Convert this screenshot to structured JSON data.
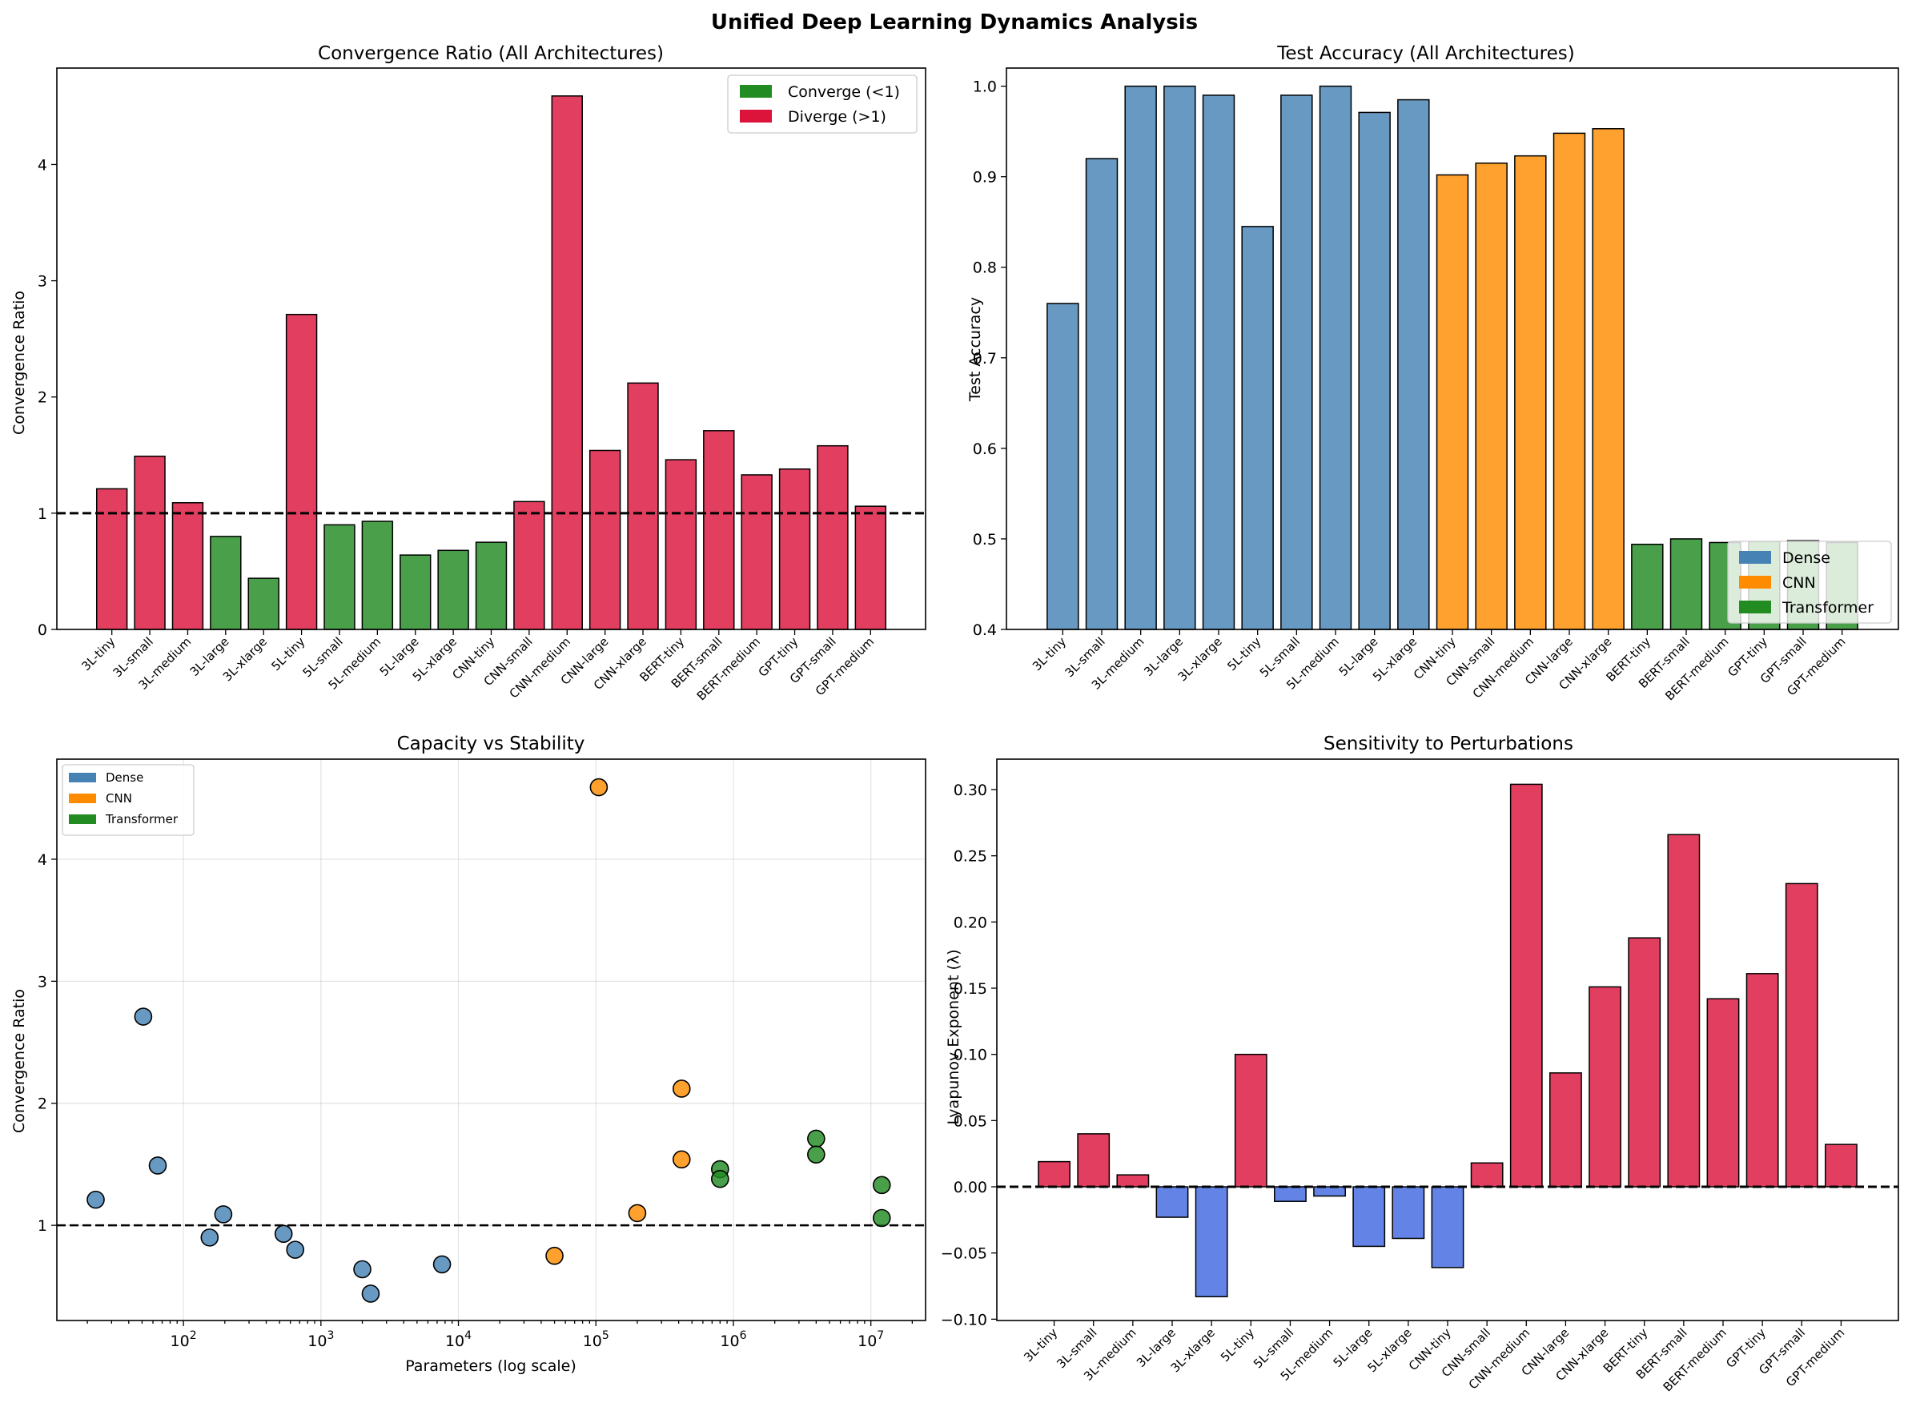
{
  "suptitle": "Unified Deep Learning Dynamics Analysis",
  "colors": {
    "converge": "#228B22",
    "diverge": "#DC143C",
    "dense": "#4682B4",
    "cnn": "#FF8C00",
    "transformer": "#228B22",
    "lyap_pos": "#DC143C",
    "lyap_neg": "#4169E1"
  },
  "chart_data": [
    {
      "type": "bar",
      "title": "Convergence Ratio (All Architectures)",
      "xlabel": "",
      "ylabel": "Convergence Ratio",
      "ylim": [
        0,
        4.83
      ],
      "yticks": [
        0,
        1,
        2,
        3,
        4
      ],
      "ytick_labels": [
        "0",
        "1",
        "2",
        "3",
        "4"
      ],
      "reference_line": 1.0,
      "categories": [
        "3L-tiny",
        "3L-small",
        "3L-medium",
        "3L-large",
        "3L-xlarge",
        "5L-tiny",
        "5L-small",
        "5L-medium",
        "5L-large",
        "5L-xlarge",
        "CNN-tiny",
        "CNN-small",
        "CNN-medium",
        "CNN-large",
        "CNN-xlarge",
        "BERT-tiny",
        "BERT-small",
        "BERT-medium",
        "GPT-tiny",
        "GPT-small",
        "GPT-medium"
      ],
      "values": [
        1.21,
        1.49,
        1.09,
        0.8,
        0.44,
        2.71,
        0.9,
        0.93,
        0.64,
        0.68,
        0.75,
        1.1,
        4.59,
        1.54,
        2.12,
        1.46,
        1.71,
        1.33,
        1.38,
        1.58,
        1.06
      ],
      "legend": [
        {
          "label": "Converge (<1)",
          "color": "#228B22"
        },
        {
          "label": "Diverge (>1)",
          "color": "#DC143C"
        }
      ],
      "legend_position": "top-right"
    },
    {
      "type": "bar",
      "title": "Test Accuracy (All Architectures)",
      "xlabel": "",
      "ylabel": "Test Accuracy",
      "ylim": [
        0.4,
        1.02
      ],
      "yticks": [
        0.4,
        0.5,
        0.6,
        0.7,
        0.8,
        0.9,
        1.0
      ],
      "ytick_labels": [
        "0.4",
        "0.5",
        "0.6",
        "0.7",
        "0.8",
        "0.9",
        "1.0"
      ],
      "categories": [
        "3L-tiny",
        "3L-small",
        "3L-medium",
        "3L-large",
        "3L-xlarge",
        "5L-tiny",
        "5L-small",
        "5L-medium",
        "5L-large",
        "5L-xlarge",
        "CNN-tiny",
        "CNN-small",
        "CNN-medium",
        "CNN-large",
        "CNN-xlarge",
        "BERT-tiny",
        "BERT-small",
        "BERT-medium",
        "GPT-tiny",
        "GPT-small",
        "GPT-medium"
      ],
      "values": [
        0.76,
        0.92,
        1.0,
        1.0,
        0.99,
        0.845,
        0.99,
        1.0,
        0.971,
        0.985,
        0.902,
        0.915,
        0.923,
        0.948,
        0.953,
        0.494,
        0.5,
        0.496,
        0.497,
        0.498,
        0.496
      ],
      "groups": [
        "dense",
        "dense",
        "dense",
        "dense",
        "dense",
        "dense",
        "dense",
        "dense",
        "dense",
        "dense",
        "cnn",
        "cnn",
        "cnn",
        "cnn",
        "cnn",
        "transformer",
        "transformer",
        "transformer",
        "transformer",
        "transformer",
        "transformer"
      ],
      "legend": [
        {
          "label": "Dense",
          "color": "#4682B4"
        },
        {
          "label": "CNN",
          "color": "#FF8C00"
        },
        {
          "label": "Transformer",
          "color": "#228B22"
        }
      ],
      "legend_position": "lower-right"
    },
    {
      "type": "scatter",
      "title": "Capacity vs Stability",
      "xlabel": "Parameters (log scale)",
      "ylabel": "Convergence Ratio",
      "xscale": "log",
      "xlim": [
        12,
        25000000
      ],
      "ylim": [
        0.22,
        4.82
      ],
      "xticks": [
        100,
        1000,
        10000,
        100000,
        1000000,
        10000000
      ],
      "xtick_base": "10",
      "xtick_exponents": [
        "2",
        "3",
        "4",
        "5",
        "6",
        "7"
      ],
      "yticks": [
        1,
        2,
        3,
        4
      ],
      "ytick_labels": [
        "1",
        "2",
        "3",
        "4"
      ],
      "reference_line": 1.0,
      "grid": true,
      "series": [
        {
          "name": "Dense",
          "color": "#4682B4",
          "x": [
            23,
            65,
            195,
            650,
            2300,
            51,
            155,
            535,
            2000,
            7600
          ],
          "y": [
            1.21,
            1.49,
            1.09,
            0.8,
            0.44,
            2.71,
            0.9,
            0.93,
            0.64,
            0.68
          ]
        },
        {
          "name": "CNN",
          "color": "#FF8C00",
          "x": [
            50000,
            200000,
            105000,
            420000,
            420000
          ],
          "y": [
            0.75,
            1.1,
            4.59,
            1.54,
            2.12
          ]
        },
        {
          "name": "Transformer",
          "color": "#228B22",
          "x": [
            800000,
            4000000,
            12000000,
            800000,
            4000000,
            12000000
          ],
          "y": [
            1.46,
            1.71,
            1.33,
            1.38,
            1.58,
            1.06
          ]
        }
      ],
      "legend": [
        {
          "label": "Dense",
          "color": "#4682B4"
        },
        {
          "label": "CNN",
          "color": "#FF8C00"
        },
        {
          "label": "Transformer",
          "color": "#228B22"
        }
      ],
      "legend_position": "top-left"
    },
    {
      "type": "bar",
      "title": "Sensitivity to Perturbations",
      "xlabel": "",
      "ylabel": "Lyapunov Exponent (λ)",
      "ylim": [
        -0.101,
        0.323
      ],
      "yticks": [
        -0.1,
        -0.05,
        0.0,
        0.05,
        0.1,
        0.15,
        0.2,
        0.25,
        0.3
      ],
      "ytick_labels": [
        "−0.10",
        "−0.05",
        "0.00",
        "0.05",
        "0.10",
        "0.15",
        "0.20",
        "0.25",
        "0.30"
      ],
      "reference_line": 0.0,
      "categories": [
        "3L-tiny",
        "3L-small",
        "3L-medium",
        "3L-large",
        "3L-xlarge",
        "5L-tiny",
        "5L-small",
        "5L-medium",
        "5L-large",
        "5L-xlarge",
        "CNN-tiny",
        "CNN-small",
        "CNN-medium",
        "CNN-large",
        "CNN-xlarge",
        "BERT-tiny",
        "BERT-small",
        "BERT-medium",
        "GPT-tiny",
        "GPT-small",
        "GPT-medium"
      ],
      "values": [
        0.019,
        0.04,
        0.009,
        -0.023,
        -0.083,
        0.1,
        -0.011,
        -0.007,
        -0.045,
        -0.039,
        -0.061,
        0.018,
        0.304,
        0.086,
        0.151,
        0.188,
        0.266,
        0.142,
        0.161,
        0.229,
        0.032
      ]
    }
  ]
}
